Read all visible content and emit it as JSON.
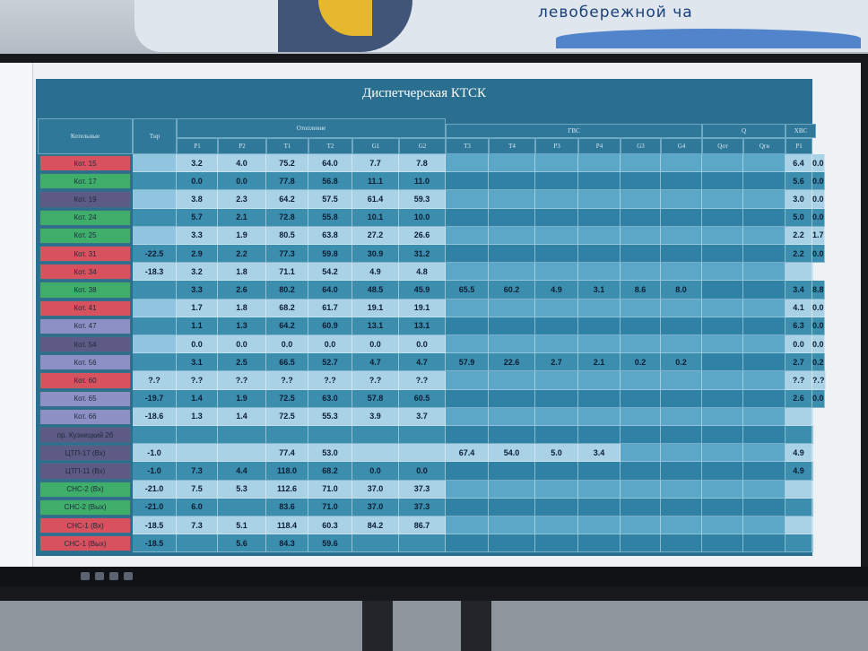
{
  "banner": {
    "text": "левобережной ча"
  },
  "app": {
    "title": "Диспетчерская КТСК"
  },
  "headers": {
    "boiler": "Котельные",
    "temp": "Тнр",
    "heating": "Отопление",
    "hot_water": "ГВС",
    "q": "Q",
    "hvs": "ХВС",
    "cols": [
      "P1",
      "P2",
      "T1",
      "T2",
      "G1",
      "G2",
      "T3",
      "T4",
      "P3",
      "P4",
      "G3",
      "G4",
      "Qот",
      "Qгв",
      "P1",
      "Qгв"
    ]
  },
  "colors": {
    "red": "#d8515e",
    "green": "#3fae6b",
    "purple": "#5e5a86",
    "violet": "#8d90c4",
    "light": "#a9d2e6",
    "dark": "#3c8eaf"
  },
  "rows": [
    {
      "name": "Кот. 15",
      "color": "red",
      "tnr": "",
      "p1": "3.2",
      "p2": "4.0",
      "t1": "75.2",
      "t2": "64.0",
      "g1": "7.7",
      "g2": "7.8",
      "t3": "",
      "t4": "",
      "p3": "",
      "p4": "",
      "g3": "",
      "g4": "",
      "x1": "6.4",
      "x2": "0.0"
    },
    {
      "name": "Кот. 17",
      "color": "green",
      "tnr": "",
      "p1": "0.0",
      "p2": "0.0",
      "t1": "77.8",
      "t2": "56.8",
      "g1": "11.1",
      "g2": "11.0",
      "t3": "",
      "t4": "",
      "p3": "",
      "p4": "",
      "g3": "",
      "g4": "",
      "x1": "5.6",
      "x2": "0.0"
    },
    {
      "name": "Кот. 19",
      "color": "purple",
      "tnr": "",
      "p1": "3.8",
      "p2": "2.3",
      "t1": "64.2",
      "t2": "57.5",
      "g1": "61.4",
      "g2": "59.3",
      "t3": "",
      "t4": "",
      "p3": "",
      "p4": "",
      "g3": "",
      "g4": "",
      "x1": "3.0",
      "x2": "0.0"
    },
    {
      "name": "Кот. 24",
      "color": "green",
      "tnr": "",
      "p1": "5.7",
      "p2": "2.1",
      "t1": "72.8",
      "t2": "55.8",
      "g1": "10.1",
      "g2": "10.0",
      "t3": "",
      "t4": "",
      "p3": "",
      "p4": "",
      "g3": "",
      "g4": "",
      "x1": "5.0",
      "x2": "0.0"
    },
    {
      "name": "Кот. 25",
      "color": "green",
      "tnr": "",
      "p1": "3.3",
      "p2": "1.9",
      "t1": "80.5",
      "t2": "63.8",
      "g1": "27.2",
      "g2": "26.6",
      "t3": "",
      "t4": "",
      "p3": "",
      "p4": "",
      "g3": "",
      "g4": "",
      "x1": "2.2",
      "x2": "1.7"
    },
    {
      "name": "Кот. 31",
      "color": "red",
      "tnr": "-22.5",
      "p1": "2.9",
      "p2": "2.2",
      "t1": "77.3",
      "t2": "59.8",
      "g1": "30.9",
      "g2": "31.2",
      "t3": "",
      "t4": "",
      "p3": "",
      "p4": "",
      "g3": "",
      "g4": "",
      "x1": "2.2",
      "x2": "0.0"
    },
    {
      "name": "Кот. 34",
      "color": "red",
      "tnr": "-18.3",
      "p1": "3.2",
      "p2": "1.8",
      "t1": "71.1",
      "t2": "54.2",
      "g1": "4.9",
      "g2": "4.8",
      "t3": "",
      "t4": "",
      "p3": "",
      "p4": "",
      "g3": "",
      "g4": "",
      "x1": "",
      "x2": ""
    },
    {
      "name": "Кот. 38",
      "color": "green",
      "tnr": "",
      "p1": "3.3",
      "p2": "2.6",
      "t1": "80.2",
      "t2": "64.0",
      "g1": "48.5",
      "g2": "45.9",
      "t3": "65.5",
      "t4": "60.2",
      "p3": "4.9",
      "p4": "3.1",
      "g3": "8.6",
      "g4": "8.0",
      "x1": "3.4",
      "x2": "8.8"
    },
    {
      "name": "Кот. 41",
      "color": "red",
      "tnr": "",
      "p1": "1.7",
      "p2": "1.8",
      "t1": "68.2",
      "t2": "61.7",
      "g1": "19.1",
      "g2": "19.1",
      "t3": "",
      "t4": "",
      "p3": "",
      "p4": "",
      "g3": "",
      "g4": "",
      "x1": "4.1",
      "x2": "0.0"
    },
    {
      "name": "Кот. 47",
      "color": "violet",
      "tnr": "",
      "p1": "1.1",
      "p2": "1.3",
      "t1": "64.2",
      "t2": "60.9",
      "g1": "13.1",
      "g2": "13.1",
      "t3": "",
      "t4": "",
      "p3": "",
      "p4": "",
      "g3": "",
      "g4": "",
      "x1": "6.3",
      "x2": "0.0"
    },
    {
      "name": "Кот. 54",
      "color": "purple",
      "tnr": "",
      "p1": "0.0",
      "p2": "0.0",
      "t1": "0.0",
      "t2": "0.0",
      "g1": "0.0",
      "g2": "0.0",
      "t3": "",
      "t4": "",
      "p3": "",
      "p4": "",
      "g3": "",
      "g4": "",
      "x1": "0.0",
      "x2": "0.0"
    },
    {
      "name": "Кот. 56",
      "color": "violet",
      "tnr": "",
      "p1": "3.1",
      "p2": "2.5",
      "t1": "66.5",
      "t2": "52.7",
      "g1": "4.7",
      "g2": "4.7",
      "t3": "57.9",
      "t4": "22.6",
      "p3": "2.7",
      "p4": "2.1",
      "g3": "0.2",
      "g4": "0.2",
      "x1": "2.7",
      "x2": "0.2"
    },
    {
      "name": "Кот. 60",
      "color": "red",
      "tnr": "?.?",
      "p1": "?.?",
      "p2": "?.?",
      "t1": "?.?",
      "t2": "?.?",
      "g1": "?.?",
      "g2": "?.?",
      "t3": "",
      "t4": "",
      "p3": "",
      "p4": "",
      "g3": "",
      "g4": "",
      "x1": "?.?",
      "x2": "?.?"
    },
    {
      "name": "Кот. 65",
      "color": "violet",
      "tnr": "-19.7",
      "p1": "1.4",
      "p2": "1.9",
      "t1": "72.5",
      "t2": "63.0",
      "g1": "57.8",
      "g2": "60.5",
      "t3": "",
      "t4": "",
      "p3": "",
      "p4": "",
      "g3": "",
      "g4": "",
      "x1": "2.6",
      "x2": "0.0"
    },
    {
      "name": "Кот. 66",
      "color": "violet",
      "tnr": "-18.6",
      "p1": "1.3",
      "p2": "1.4",
      "t1": "72.5",
      "t2": "55.3",
      "g1": "3.9",
      "g2": "3.7",
      "t3": "",
      "t4": "",
      "p3": "",
      "p4": "",
      "g3": "",
      "g4": "",
      "x1": "",
      "x2": ""
    },
    {
      "name": "пр. Кузнецкий 2б",
      "color": "purple",
      "tnr": "",
      "p1": "",
      "p2": "",
      "t1": "",
      "t2": "",
      "g1": "",
      "g2": "",
      "t3": "",
      "t4": "",
      "p3": "",
      "p4": "",
      "g3": "",
      "g4": "",
      "x1": "",
      "x2": ""
    },
    {
      "name": "ЦТП-17 (Вх)",
      "color": "purple",
      "tnr": "-1.0",
      "p1": "",
      "p2": "",
      "t1": "77.4",
      "t2": "53.0",
      "g1": "",
      "g2": "",
      "t3": "67.4",
      "t4": "54.0",
      "p3": "5.0",
      "p4": "3.4",
      "g3": "",
      "g4": "",
      "x1": "4.9",
      "x2": ""
    },
    {
      "name": "ЦТП-11 (Вх)",
      "color": "purple",
      "tnr": "-1.0",
      "p1": "7.3",
      "p2": "4.4",
      "t1": "118.0",
      "t2": "68.2",
      "g1": "0.0",
      "g2": "0.0",
      "t3": "",
      "t4": "",
      "p3": "",
      "p4": "",
      "g3": "",
      "g4": "",
      "x1": "4.9",
      "x2": ""
    },
    {
      "name": "СНС-2 (Вх)",
      "color": "green",
      "tnr": "-21.0",
      "p1": "7.5",
      "p2": "5.3",
      "t1": "112.6",
      "t2": "71.0",
      "g1": "37.0",
      "g2": "37.3",
      "t3": "",
      "t4": "",
      "p3": "",
      "p4": "",
      "g3": "",
      "g4": "",
      "x1": "",
      "x2": ""
    },
    {
      "name": "СНС-2 (Вых)",
      "color": "green",
      "tnr": "-21.0",
      "p1": "6.0",
      "p2": "",
      "t1": "83.6",
      "t2": "71.0",
      "g1": "37.0",
      "g2": "37.3",
      "t3": "",
      "t4": "",
      "p3": "",
      "p4": "",
      "g3": "",
      "g4": "",
      "x1": "",
      "x2": ""
    },
    {
      "name": "СНС-1 (Вх)",
      "color": "red",
      "tnr": "-18.5",
      "p1": "7.3",
      "p2": "5.1",
      "t1": "118.4",
      "t2": "60.3",
      "g1": "84.2",
      "g2": "86.7",
      "t3": "",
      "t4": "",
      "p3": "",
      "p4": "",
      "g3": "",
      "g4": "",
      "x1": "",
      "x2": ""
    },
    {
      "name": "СНС-1 (Вых)",
      "color": "red",
      "tnr": "-18.5",
      "p1": "",
      "p2": "5.6",
      "t1": "84.3",
      "t2": "59.6",
      "g1": "",
      "g2": "",
      "t3": "",
      "t4": "",
      "p3": "",
      "p4": "",
      "g3": "",
      "g4": "",
      "x1": "",
      "x2": ""
    }
  ]
}
